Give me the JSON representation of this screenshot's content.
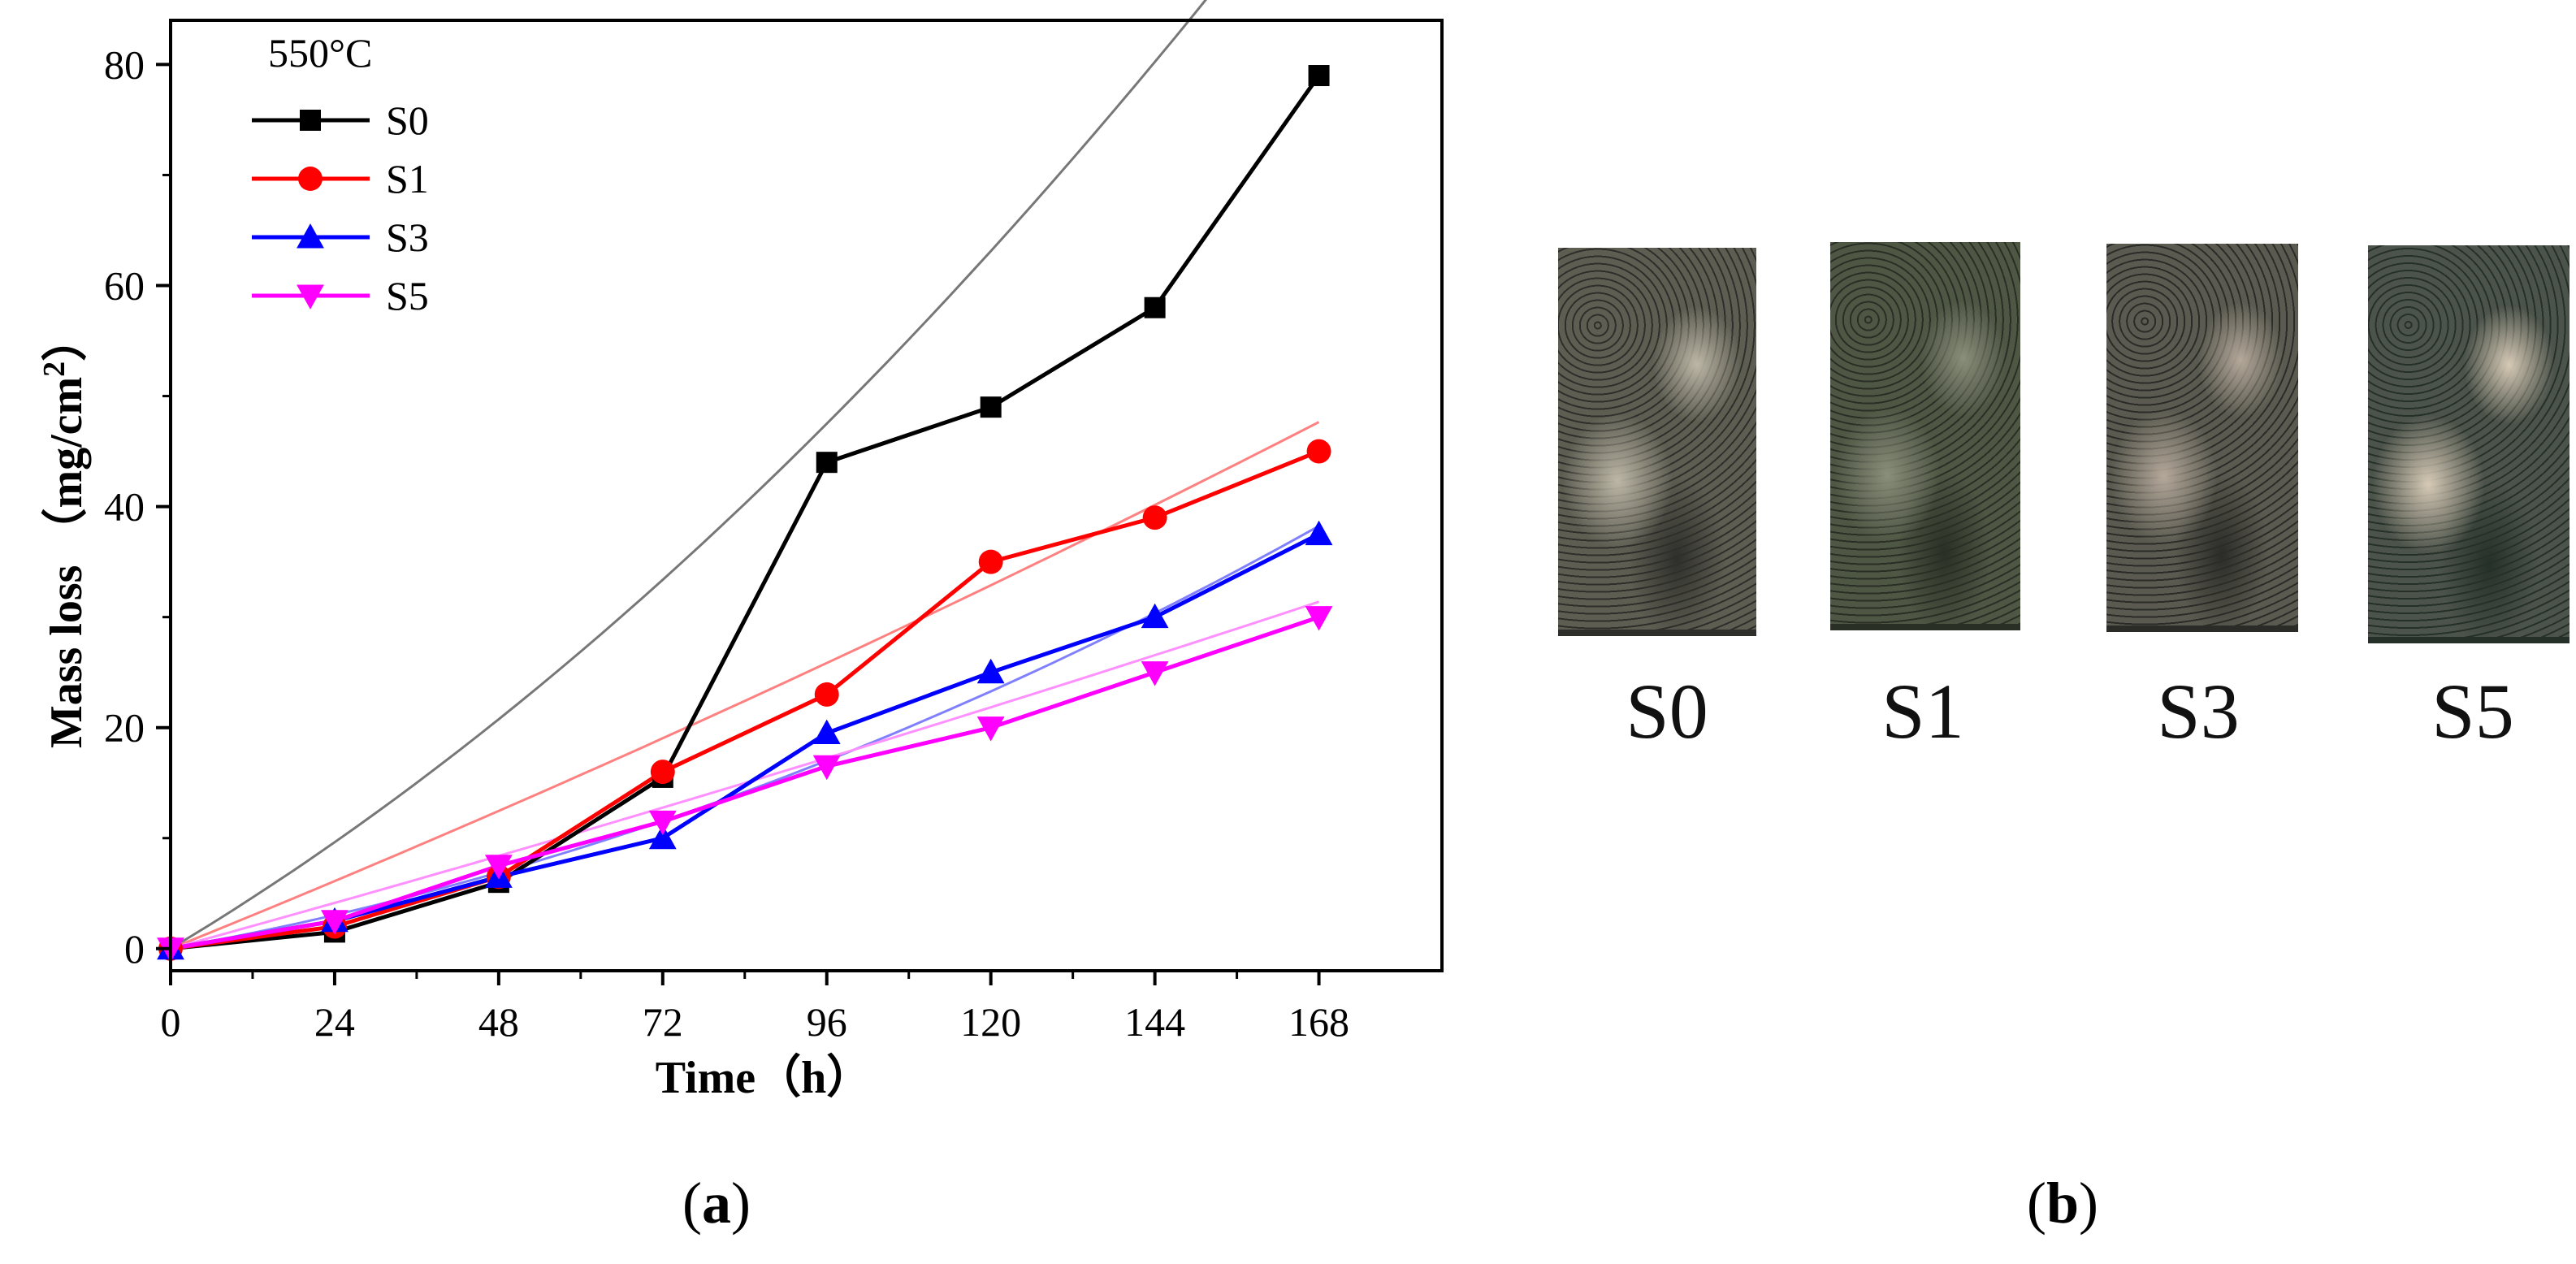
{
  "chart_data": {
    "type": "line",
    "annotation": "550°C",
    "xlabel": "Time（h）",
    "ylabel_main": "Mass loss （mg/cm",
    "ylabel_sup": "2",
    "ylabel_close": "）",
    "xlim": [
      0,
      186
    ],
    "ylim": [
      -2,
      84
    ],
    "x": [
      0,
      24,
      48,
      72,
      96,
      120,
      144,
      168
    ],
    "xticks": [
      "0",
      "24",
      "48",
      "72",
      "96",
      "120",
      "144",
      "168"
    ],
    "yticks": [
      "0",
      "20",
      "40",
      "60",
      "80"
    ],
    "ytick_values": [
      0,
      20,
      40,
      60,
      80
    ],
    "legend_position": "top-left",
    "series": [
      {
        "name": "S0",
        "marker": "square",
        "color": "#000000",
        "fit_color": "#777777",
        "values": [
          0,
          1.5,
          6,
          15.5,
          44,
          49,
          58,
          79
        ],
        "fit": [
          0,
          0.37,
          0.0013
        ]
      },
      {
        "name": "S1",
        "marker": "circle",
        "color": "#ff0000",
        "fit_color": "#ff8080",
        "values": [
          0,
          2,
          6.5,
          16,
          23,
          35,
          39,
          45
        ],
        "fit": [
          0,
          0.25,
          0.0002
        ]
      },
      {
        "name": "S3",
        "marker": "triangle-up",
        "color": "#0000ff",
        "fit_color": "#8080ff",
        "values": [
          0,
          2.5,
          6.5,
          10,
          19.5,
          25,
          30,
          37.5
        ],
        "fit": [
          0,
          0.11,
          0.0007
        ]
      },
      {
        "name": "S5",
        "marker": "triangle-down",
        "color": "#ff00ff",
        "fit_color": "#ff90ff",
        "values": [
          0,
          2.5,
          7.5,
          11.5,
          16.5,
          20,
          25,
          30
        ],
        "fit": [
          0,
          0.17,
          0.0001
        ]
      }
    ]
  },
  "samples": [
    {
      "label": "S0",
      "base": "#5d5d52",
      "light": "#bdb7a6",
      "dark": "#2e2f2a"
    },
    {
      "label": "S1",
      "base": "#4e5644",
      "light": "#8a8e7a",
      "dark": "#2a2f25"
    },
    {
      "label": "S3",
      "base": "#5a5a50",
      "light": "#b4a89a",
      "dark": "#2b2c27"
    },
    {
      "label": "S5",
      "base": "#4c534a",
      "light": "#d6c9b6",
      "dark": "#253029"
    }
  ],
  "panels": {
    "a": "a",
    "b": "b"
  }
}
